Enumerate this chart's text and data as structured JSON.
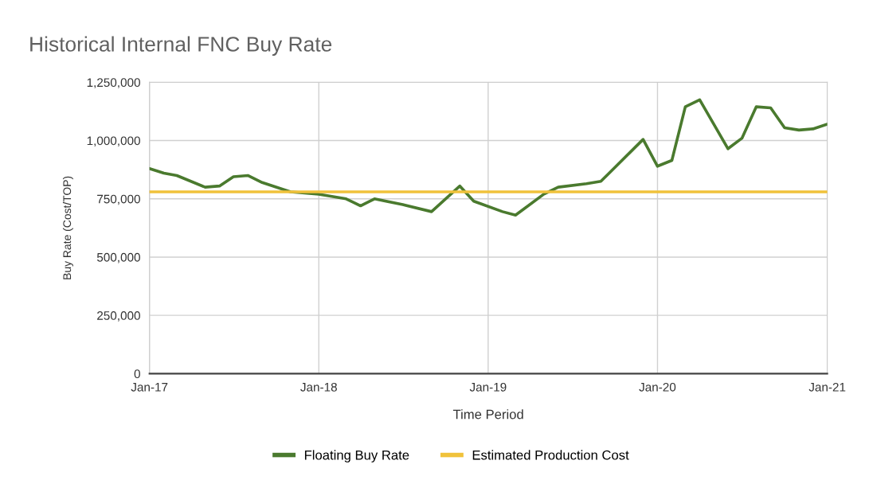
{
  "chart_data": {
    "type": "line",
    "title": "Historical Internal FNC Buy Rate",
    "xlabel": "Time Period",
    "ylabel": "Buy Rate (Cost/TOP)",
    "series": [
      {
        "name": "Floating Buy Rate",
        "color": "#4a7a2e",
        "x": [
          "2017-01",
          "2017-02",
          "2017-03",
          "2017-05",
          "2017-06",
          "2017-07",
          "2017-08",
          "2017-09",
          "2017-11",
          "2018-01",
          "2018-03",
          "2018-04",
          "2018-05",
          "2018-07",
          "2018-09",
          "2018-11",
          "2018-12",
          "2019-02",
          "2019-03",
          "2019-05",
          "2019-06",
          "2019-08",
          "2019-09",
          "2019-12",
          "2020-01",
          "2020-02",
          "2020-03",
          "2020-04",
          "2020-06",
          "2020-07",
          "2020-08",
          "2020-09",
          "2020-10",
          "2020-11",
          "2020-12",
          "2021-01"
        ],
        "values": [
          880000,
          860000,
          850000,
          800000,
          805000,
          845000,
          850000,
          820000,
          780000,
          770000,
          750000,
          720000,
          750000,
          725000,
          695000,
          805000,
          740000,
          695000,
          680000,
          770000,
          800000,
          815000,
          825000,
          1005000,
          890000,
          915000,
          1145000,
          1175000,
          965000,
          1010000,
          1145000,
          1140000,
          1055000,
          1045000,
          1050000,
          1070000
        ]
      },
      {
        "name": "Estimated Production Cost",
        "color": "#f0c23b",
        "x": [
          "2017-01",
          "2021-01"
        ],
        "values": [
          780000,
          780000
        ]
      }
    ],
    "xlim": [
      "2017-01",
      "2021-01"
    ],
    "xticks": [
      {
        "value": "2017-01",
        "label": "Jan-17"
      },
      {
        "value": "2018-01",
        "label": "Jan-18"
      },
      {
        "value": "2019-01",
        "label": "Jan-19"
      },
      {
        "value": "2020-01",
        "label": "Jan-20"
      },
      {
        "value": "2021-01",
        "label": "Jan-21"
      }
    ],
    "ylim": [
      0,
      1250000
    ],
    "yticks": [
      {
        "value": 0,
        "label": "0"
      },
      {
        "value": 250000,
        "label": "250,000"
      },
      {
        "value": 500000,
        "label": "500,000"
      },
      {
        "value": 750000,
        "label": "750,000"
      },
      {
        "value": 1000000,
        "label": "1,000,000"
      },
      {
        "value": 1250000,
        "label": "1,250,000"
      }
    ],
    "grid": true,
    "legend": "bottom",
    "marker": "none",
    "line_style": "solid"
  }
}
